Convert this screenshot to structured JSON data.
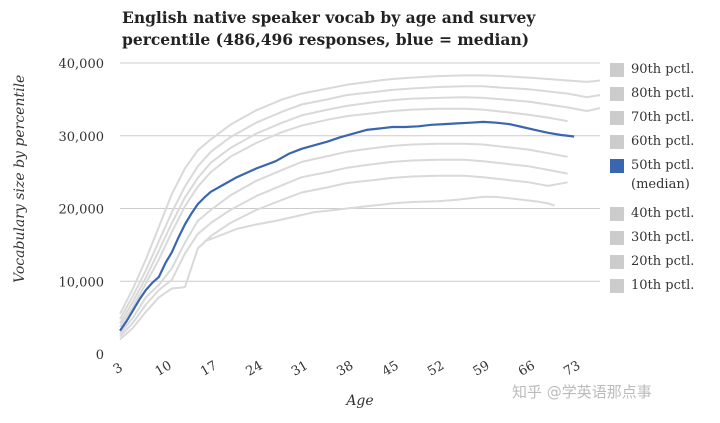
{
  "chart_data": {
    "type": "line",
    "title_line1": "English native speaker vocab by age and survey",
    "title_line2": "percentile (486,496 responses, blue = median)",
    "xlabel": "Age",
    "ylabel": "Vocabulary size by percentile",
    "x_ticks": [
      "3",
      "10",
      "17",
      "24",
      "31",
      "38",
      "45",
      "52",
      "59",
      "66",
      "73"
    ],
    "y_ticks": [
      "0",
      "10,000",
      "20,000",
      "30,000",
      "40,000"
    ],
    "xlim": [
      3,
      77
    ],
    "ylim": [
      0,
      40000
    ],
    "grid": true,
    "legend_position": "right",
    "series": [
      {
        "name": "90th pctl.",
        "color": "#d9d9d9",
        "x": [
          3,
          5,
          7,
          9,
          11,
          13,
          15,
          17,
          20,
          24,
          28,
          31,
          35,
          38,
          42,
          45,
          48,
          52,
          56,
          59,
          62,
          66,
          69,
          72,
          75,
          77
        ],
        "values": [
          5500,
          9000,
          13000,
          17500,
          22000,
          25500,
          28000,
          29500,
          31500,
          33500,
          35000,
          35800,
          36500,
          37000,
          37500,
          37800,
          38000,
          38200,
          38300,
          38300,
          38200,
          38000,
          37800,
          37600,
          37400,
          37600
        ]
      },
      {
        "name": "80th pctl.",
        "color": "#d9d9d9",
        "x": [
          3,
          5,
          7,
          9,
          11,
          13,
          15,
          17,
          20,
          24,
          28,
          31,
          35,
          38,
          42,
          45,
          48,
          52,
          56,
          59,
          62,
          66,
          69,
          72,
          75,
          77
        ],
        "values": [
          4800,
          8000,
          11500,
          15500,
          19500,
          23000,
          25800,
          27800,
          29800,
          31800,
          33300,
          34300,
          35000,
          35600,
          36000,
          36300,
          36500,
          36700,
          36800,
          36800,
          36600,
          36400,
          36100,
          35800,
          35300,
          35600
        ]
      },
      {
        "name": "70th pctl.",
        "color": "#d9d9d9",
        "x": [
          3,
          5,
          7,
          9,
          11,
          13,
          15,
          17,
          20,
          24,
          28,
          31,
          35,
          38,
          42,
          45,
          48,
          52,
          56,
          59,
          62,
          66,
          69,
          72,
          75,
          77
        ],
        "values": [
          4200,
          7200,
          10500,
          14200,
          18000,
          21500,
          24200,
          26300,
          28300,
          30300,
          31800,
          32800,
          33600,
          34100,
          34600,
          34900,
          35100,
          35200,
          35300,
          35200,
          35000,
          34700,
          34300,
          33900,
          33400,
          33800
        ]
      },
      {
        "name": "60th pctl.",
        "color": "#d9d9d9",
        "x": [
          3,
          5,
          7,
          9,
          11,
          13,
          15,
          17,
          20,
          24,
          28,
          31,
          35,
          38,
          42,
          45,
          48,
          52,
          56,
          59,
          62,
          66,
          69,
          72
        ],
        "values": [
          3700,
          6500,
          9700,
          13000,
          16800,
          20300,
          23000,
          25000,
          27100,
          29000,
          30500,
          31400,
          32200,
          32700,
          33100,
          33400,
          33600,
          33700,
          33700,
          33600,
          33300,
          32900,
          32500,
          32000
        ]
      },
      {
        "name": "50th pctl. (median)",
        "color": "#3a66b0",
        "x": [
          3,
          4,
          5,
          6,
          7,
          8,
          9,
          10,
          11,
          12,
          13,
          14,
          15,
          16,
          17,
          19,
          21,
          24,
          27,
          29,
          31,
          33,
          35,
          37,
          39,
          41,
          43,
          45,
          47,
          49,
          51,
          53,
          55,
          57,
          59,
          61,
          63,
          65,
          67,
          69,
          71,
          73
        ],
        "values": [
          3200,
          4500,
          6000,
          7500,
          8800,
          9800,
          10600,
          12500,
          14000,
          16000,
          17800,
          19300,
          20600,
          21500,
          22300,
          23300,
          24300,
          25500,
          26500,
          27500,
          28200,
          28700,
          29200,
          29800,
          30300,
          30800,
          31000,
          31200,
          31200,
          31300,
          31500,
          31600,
          31700,
          31800,
          31900,
          31800,
          31600,
          31200,
          30800,
          30400,
          30100,
          29900
        ]
      },
      {
        "name": "40th pctl.",
        "color": "#d9d9d9",
        "x": [
          3,
          5,
          7,
          9,
          11,
          13,
          15,
          17,
          20,
          24,
          28,
          31,
          35,
          38,
          42,
          45,
          48,
          52,
          56,
          59,
          62,
          66,
          69,
          72
        ],
        "values": [
          2800,
          5000,
          7800,
          9500,
          11800,
          15300,
          18300,
          19800,
          21800,
          23800,
          25300,
          26400,
          27200,
          27800,
          28300,
          28600,
          28800,
          28900,
          28900,
          28800,
          28500,
          28100,
          27600,
          27100
        ]
      },
      {
        "name": "30th pctl.",
        "color": "#d9d9d9",
        "x": [
          3,
          5,
          7,
          9,
          11,
          13,
          15,
          17,
          20,
          24,
          28,
          31,
          35,
          38,
          42,
          45,
          48,
          52,
          56,
          59,
          62,
          66,
          69,
          72
        ],
        "values": [
          2400,
          4300,
          6800,
          8800,
          10200,
          13800,
          16500,
          18000,
          19800,
          21700,
          23200,
          24300,
          25000,
          25600,
          26100,
          26400,
          26600,
          26700,
          26700,
          26500,
          26200,
          25800,
          25300,
          24800
        ]
      },
      {
        "name": "20th pctl.",
        "color": "#d9d9d9",
        "x": [
          3,
          5,
          7,
          9,
          11,
          13,
          15,
          17,
          20,
          24,
          28,
          31,
          35,
          38,
          42,
          45,
          48,
          52,
          56,
          59,
          62,
          66,
          69,
          72
        ],
        "values": [
          2000,
          3600,
          5800,
          7800,
          9000,
          9200,
          14500,
          16200,
          18000,
          19800,
          21200,
          22200,
          22900,
          23500,
          23900,
          24200,
          24400,
          24500,
          24500,
          24300,
          24000,
          23600,
          23100,
          23600
        ]
      },
      {
        "name": "10th pctl.",
        "color": "#d9d9d9",
        "x": [
          16,
          17,
          19,
          21,
          24,
          27,
          29,
          31,
          33,
          35,
          38,
          41,
          43,
          45,
          48,
          52,
          55,
          57,
          59,
          61,
          63,
          65,
          67,
          69,
          70
        ],
        "values": [
          15500,
          15800,
          16500,
          17200,
          17800,
          18300,
          18700,
          19100,
          19500,
          19700,
          20000,
          20300,
          20500,
          20700,
          20900,
          21000,
          21200,
          21400,
          21600,
          21600,
          21400,
          21200,
          21000,
          20700,
          20400
        ]
      }
    ],
    "legend": [
      "90th pctl.",
      "80th pctl.",
      "70th pctl.",
      "60th pctl.",
      "50th pctl. (median)",
      "40th pctl.",
      "30th pctl.",
      "20th pctl.",
      "10th pctl."
    ]
  },
  "legend_lines": {
    "median_line1": "50th pctl.",
    "median_line2": "(median)"
  },
  "watermark": "知乎 @学英语那点事"
}
